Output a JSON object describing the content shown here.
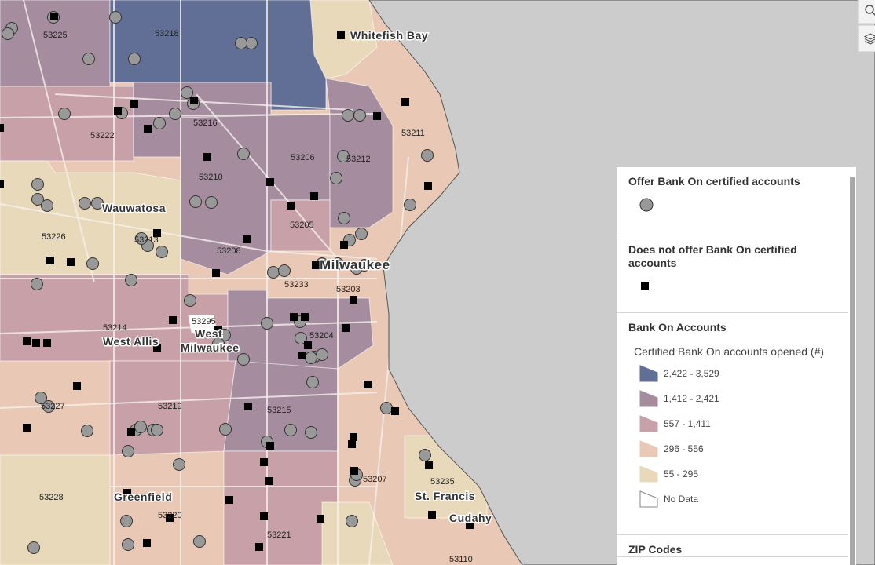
{
  "map": {
    "colors": {
      "water": "#cccccc",
      "class1": "#616e95",
      "class2": "#a58d9f",
      "class3": "#c7a0a8",
      "class4": "#e9c8b5",
      "class5": "#e9d9bb",
      "nodata": "#ffffff"
    },
    "zip_labels": [
      "53225",
      "53218",
      "53222",
      "53216",
      "53206",
      "53212",
      "53211",
      "53210",
      "53226",
      "53205",
      "53213",
      "53208",
      "53233",
      "53203",
      "53214",
      "53295",
      "53204",
      "53227",
      "53219",
      "53215",
      "53207",
      "53235",
      "53228",
      "53220",
      "53221",
      "53110"
    ],
    "places": [
      "Whitefish Bay",
      "Wauwatosa",
      "Milwaukee",
      "West Allis",
      "West",
      "Milwaukee",
      "Greenfield",
      "St. Francis",
      "Cudahy"
    ]
  },
  "controls": {
    "search_icon": "search-icon",
    "layers_icon": "layers-icon"
  },
  "legend": {
    "sections": [
      {
        "title": "Offer Bank On certified accounts",
        "symbol": "gray-circle"
      },
      {
        "title": "Does not offer Bank On certified accounts",
        "symbol": "black-square"
      }
    ],
    "bank_on": {
      "title": "Bank On Accounts",
      "subtitle": "Certified Bank On accounts opened (#)",
      "classes": [
        {
          "label": "2,422 - 3,529",
          "color": "#616e95"
        },
        {
          "label": "1,412 - 2,421",
          "color": "#a58d9f"
        },
        {
          "label": "557 - 1,411",
          "color": "#c7a0a8"
        },
        {
          "label": "296 - 556",
          "color": "#e9c8b5"
        },
        {
          "label": "55 - 295",
          "color": "#e9d9bb"
        },
        {
          "label": "No Data",
          "color": "#ffffff"
        }
      ]
    },
    "zip_title": "ZIP Codes"
  }
}
